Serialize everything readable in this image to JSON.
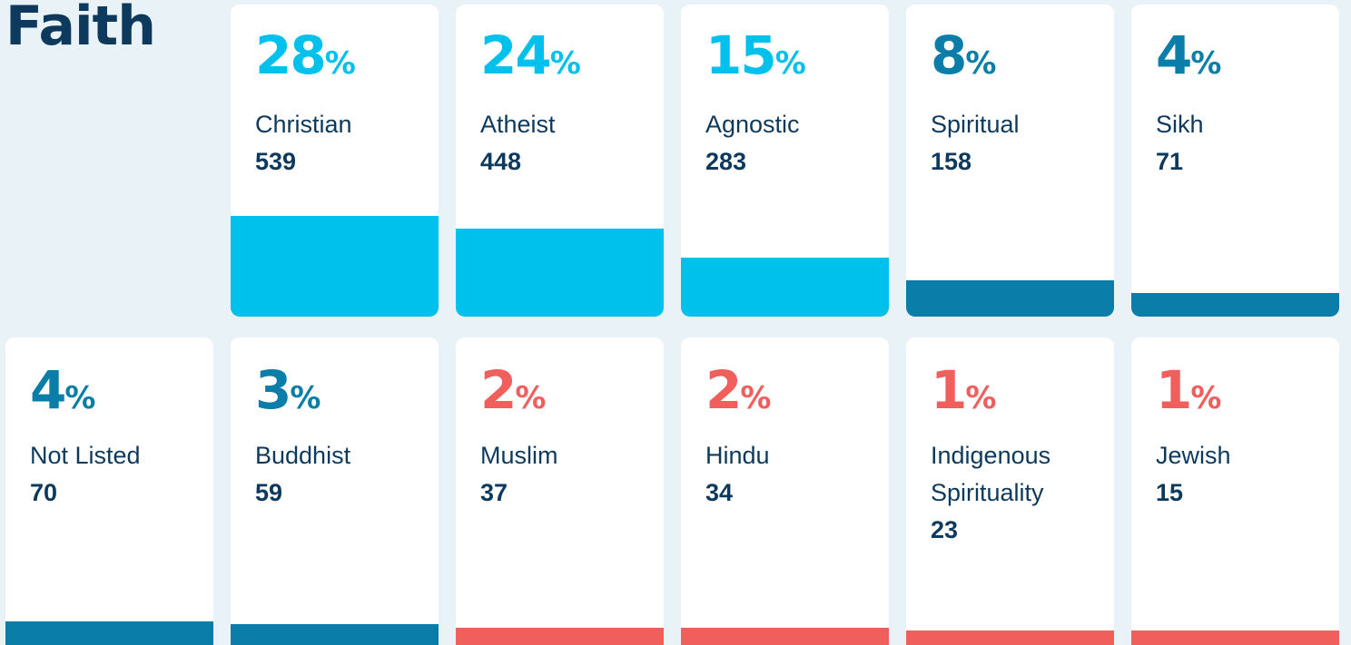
{
  "chart_data": {
    "type": "bar",
    "title": "Faith",
    "categories": [
      "Christian",
      "Atheist",
      "Agnostic",
      "Spiritual",
      "Sikh",
      "Not Listed",
      "Buddhist",
      "Muslim",
      "Hindu",
      "Indigenous Spirituality",
      "Jewish"
    ],
    "values": [
      28,
      24,
      15,
      8,
      4,
      4,
      3,
      2,
      2,
      1,
      1
    ],
    "value_labels": [
      "28%",
      "24%",
      "15%",
      "8%",
      "4%",
      "4%",
      "3%",
      "2%",
      "2%",
      "1%",
      "1%"
    ],
    "counts": [
      539,
      448,
      283,
      158,
      71,
      70,
      59,
      37,
      34,
      23,
      15
    ],
    "colors": [
      "#00c1ec",
      "#00c1ec",
      "#00c1ec",
      "#0a7ea8",
      "#0a7ea8",
      "#0a7ea8",
      "#0a7ea8",
      "#f05f5c",
      "#f05f5c",
      "#f05f5c",
      "#f05f5c"
    ]
  }
}
